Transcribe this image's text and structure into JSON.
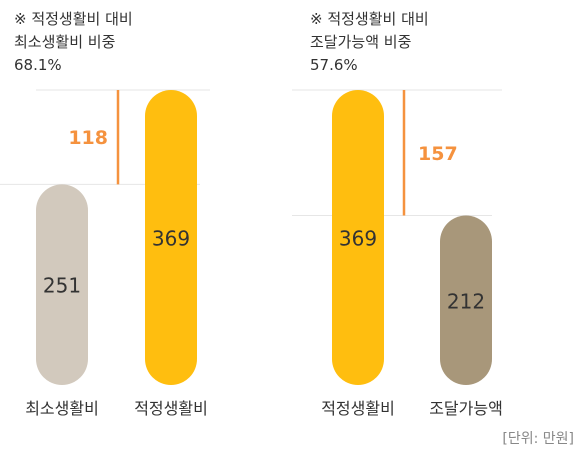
{
  "chart_data": [
    {
      "type": "bar",
      "note": [
        "※ 적정생활비 대비",
        "최소생활비 비중",
        "68.1%"
      ],
      "categories": [
        "최소생활비",
        "적정생활비"
      ],
      "values": [
        251,
        369
      ],
      "colors": [
        "#d2c9bd",
        "#ffbe0f"
      ],
      "difference": 118,
      "difference_color": "#f5923e"
    },
    {
      "type": "bar",
      "note": [
        "※ 적정생활비 대비",
        "조달가능액 비중",
        "57.6%"
      ],
      "categories": [
        "적정생활비",
        "조달가능액"
      ],
      "values": [
        369,
        212
      ],
      "colors": [
        "#ffbe0f",
        "#a8977a"
      ],
      "difference": 157,
      "difference_color": "#f5923e"
    }
  ],
  "unit_label": [
    "[단위",
    ": 만원]"
  ]
}
